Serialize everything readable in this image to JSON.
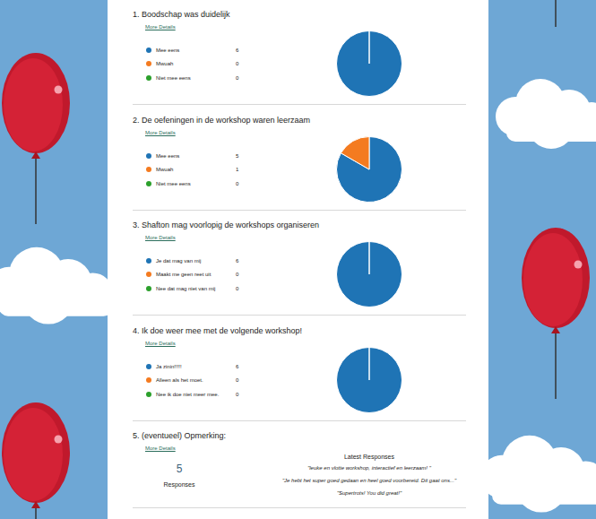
{
  "chart_data": [
    {
      "type": "pie",
      "title": "1.  Boodschap was duidelijk",
      "subtitle": "More Details",
      "categories": [
        "Mee eens",
        "Mwuah",
        "Niet mee eens"
      ],
      "values": [
        6,
        0,
        0
      ],
      "colors": [
        "#1f74b5",
        "#f47b20",
        "#2ca02c"
      ]
    },
    {
      "type": "pie",
      "title": "2.  De oefeningen in de workshop waren leerzaam",
      "subtitle": "More Details",
      "categories": [
        "Mee eens",
        "Mwuah",
        "Niet mee eens"
      ],
      "values": [
        5,
        1,
        0
      ],
      "colors": [
        "#1f74b5",
        "#f47b20",
        "#2ca02c"
      ]
    },
    {
      "type": "pie",
      "title": "3.  Shafton mag voorlopig de workshops organiseren",
      "subtitle": "More Details",
      "categories": [
        "Je dat mag van mij",
        "Maakt me geen reet uit",
        "Nee dat mag niet van mij"
      ],
      "values": [
        6,
        0,
        0
      ],
      "colors": [
        "#1f74b5",
        "#f47b20",
        "#2ca02c"
      ]
    },
    {
      "type": "pie",
      "title": "4.  Ik doe weer mee met de volgende workshop!",
      "subtitle": "More Details",
      "categories": [
        "Ja zinin!!!!!",
        "Alleen als het moet.",
        "Nee ik doe niet meer mee."
      ],
      "values": [
        6,
        0,
        0
      ],
      "colors": [
        "#1f74b5",
        "#f47b20",
        "#2ca02c"
      ]
    }
  ],
  "comment_question": {
    "title": "5.  (eventueel) Opmerking:",
    "subtitle": "More Details",
    "count": 5,
    "count_label": "Responses",
    "latest_title": "Latest Responses",
    "latest": [
      "\"leuke en vlotte workshop, interactief en leerzaam! \"",
      "\"Je hebt het super goed gedaan en heel goed voorbereid. Dit gaat ons...\"",
      "\"Supertrots! You did great!\""
    ]
  }
}
